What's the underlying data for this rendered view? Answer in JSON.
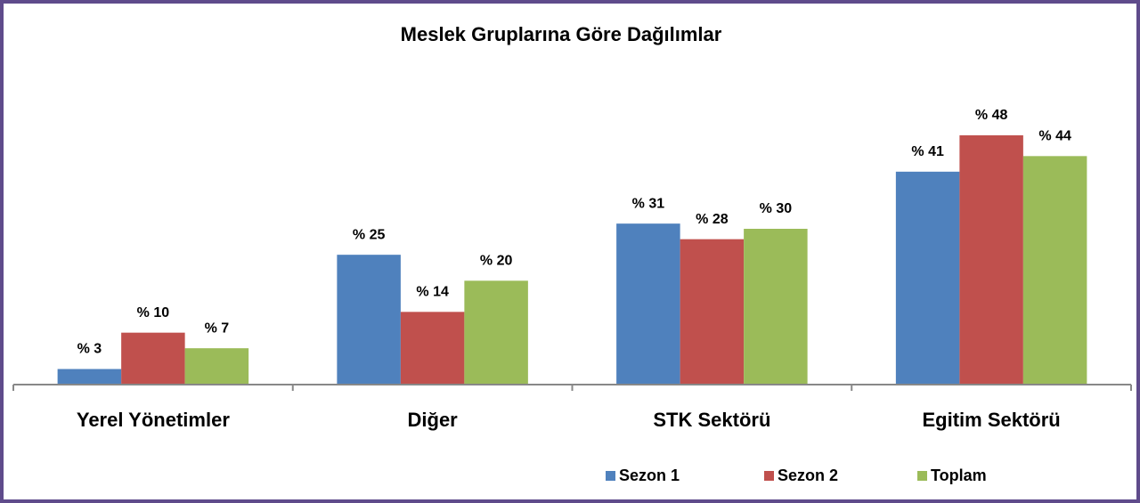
{
  "chart_data": {
    "type": "bar",
    "title": "Meslek Gruplarına Göre Dağılımlar",
    "categories": [
      "Yerel Yönetimler",
      "Diğer",
      "STK Sektörü",
      "Egitim Sektörü"
    ],
    "series": [
      {
        "name": "Sezon 1",
        "color": "#4f81bd",
        "values": [
          3,
          25,
          31,
          41
        ],
        "value_labels": [
          "% 3",
          "% 25",
          "% 31",
          "% 41"
        ]
      },
      {
        "name": "Sezon 2",
        "color": "#c0504d",
        "values": [
          10,
          14,
          28,
          48
        ],
        "value_labels": [
          "% 10",
          "% 14",
          "% 28",
          "% 48"
        ]
      },
      {
        "name": "Toplam",
        "color": "#9bbb59",
        "values": [
          7,
          20,
          30,
          44
        ],
        "value_labels": [
          "% 7",
          "% 20",
          "% 30",
          "% 44"
        ]
      }
    ],
    "legend": "bottom"
  }
}
